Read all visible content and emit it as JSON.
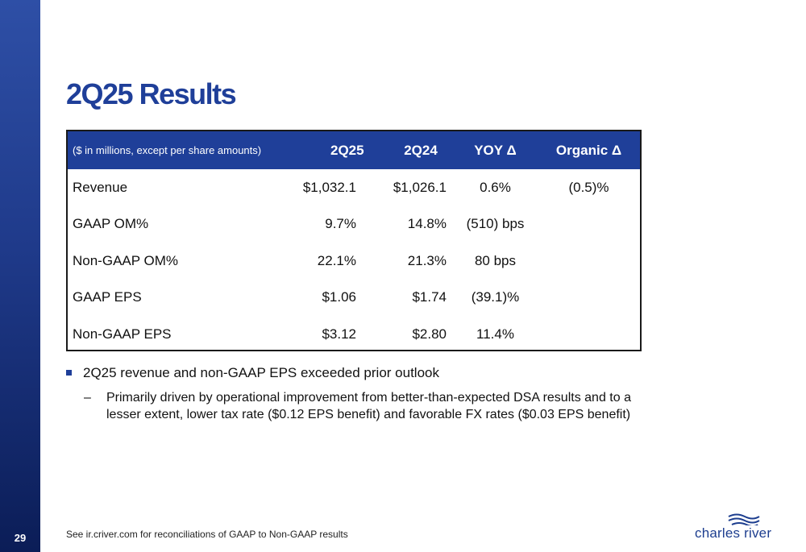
{
  "page": {
    "number": "29"
  },
  "title": "2Q25 Results",
  "table": {
    "header": [
      "($ in millions, except per share amounts)",
      "2Q25",
      "2Q24",
      "YOY Δ",
      "Organic Δ"
    ],
    "rows": [
      [
        "Revenue",
        "$1,032.1",
        "$1,026.1",
        "0.6%",
        "(0.5)%"
      ],
      [
        "GAAP OM%",
        "9.7%",
        "14.8%",
        "(510) bps",
        ""
      ],
      [
        "Non-GAAP OM%",
        "22.1%",
        "21.3%",
        "80 bps",
        ""
      ],
      [
        "GAAP EPS",
        "$1.06",
        "$1.74",
        "(39.1)%",
        ""
      ],
      [
        "Non-GAAP EPS",
        "$3.12",
        "$2.80",
        "11.4%",
        ""
      ]
    ]
  },
  "bullets": {
    "main": "2Q25 revenue and non-GAAP EPS exceeded prior outlook",
    "dash": "–",
    "sub": "Primarily driven by operational improvement from better-than-expected DSA results and to a lesser extent, lower tax rate ($0.12 EPS benefit) and favorable FX rates ($0.03 EPS benefit)"
  },
  "footnote": "See ir.criver.com for reconciliations of GAAP to Non-GAAP results",
  "logo": {
    "text": "charles river",
    "icon": "wave-logo-icon"
  },
  "colors": {
    "brand": "#1f3f99",
    "sidebar_dark": "#0b1d57"
  }
}
